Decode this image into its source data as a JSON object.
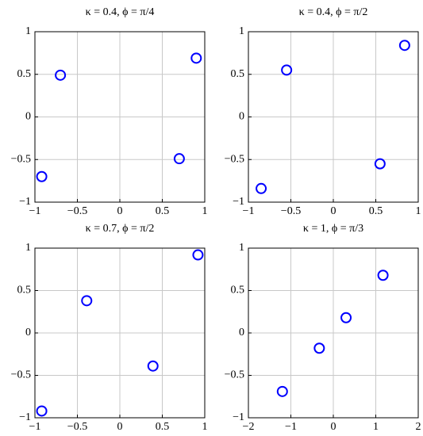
{
  "chart_data": [
    {
      "type": "scatter",
      "title": "κ = 0.4, ϕ = π/4",
      "color": "#0000ff",
      "grid": true,
      "x": [
        -0.7,
        -0.92,
        0.7,
        0.9
      ],
      "values": [
        0.49,
        -0.7,
        -0.49,
        0.69
      ],
      "xlim": [
        -1,
        1
      ],
      "ylim": [
        -1,
        1
      ],
      "xticks": [
        {
          "value": -1,
          "label": "−1"
        },
        {
          "value": -0.5,
          "label": "−0.5"
        },
        0,
        0.5,
        1
      ],
      "yticks": [
        {
          "value": -1,
          "label": "−1"
        },
        {
          "value": -0.5,
          "label": "−0.5"
        },
        0,
        0.5,
        1
      ]
    },
    {
      "type": "scatter",
      "title": "κ = 0.4, ϕ = π/2",
      "color": "#0000ff",
      "grid": true,
      "x": [
        -0.85,
        -0.55,
        0.55,
        0.84
      ],
      "values": [
        -0.84,
        0.55,
        -0.55,
        0.84
      ],
      "xlim": [
        -1,
        1
      ],
      "ylim": [
        -1,
        1
      ],
      "xticks": [
        {
          "value": -1,
          "label": "−1"
        },
        {
          "value": -0.5,
          "label": "−0.5"
        },
        0,
        0.5,
        1
      ],
      "yticks": [
        {
          "value": -1,
          "label": "−1"
        },
        {
          "value": -0.5,
          "label": "−0.5"
        },
        0,
        0.5,
        1
      ]
    },
    {
      "type": "scatter",
      "title": "κ = 0.7, ϕ = π/2",
      "color": "#0000ff",
      "grid": true,
      "x": [
        -0.92,
        -0.39,
        0.39,
        0.92
      ],
      "values": [
        -0.92,
        0.38,
        -0.39,
        0.92
      ],
      "xlim": [
        -1,
        1
      ],
      "ylim": [
        -1,
        1
      ],
      "xticks": [
        {
          "value": -1,
          "label": "−1"
        },
        {
          "value": -0.5,
          "label": "−0.5"
        },
        0,
        0.5,
        1
      ],
      "yticks": [
        {
          "value": -1,
          "label": "−1"
        },
        {
          "value": -0.5,
          "label": "−0.5"
        },
        0,
        0.5,
        1
      ]
    },
    {
      "type": "scatter",
      "title": "κ = 1, ϕ = π/3",
      "color": "#0000ff",
      "grid": true,
      "x": [
        -1.2,
        -0.33,
        0.3,
        1.17
      ],
      "values": [
        -0.69,
        -0.18,
        0.18,
        0.68
      ],
      "xlim": [
        -2,
        2
      ],
      "ylim": [
        -1,
        1
      ],
      "xticks": [
        {
          "value": -2,
          "label": "−2"
        },
        {
          "value": -1,
          "label": "−1"
        },
        0,
        1,
        2
      ],
      "yticks": [
        {
          "value": -1,
          "label": "−1"
        },
        {
          "value": -0.5,
          "label": "−0.5"
        },
        0,
        0.5,
        1
      ]
    }
  ]
}
